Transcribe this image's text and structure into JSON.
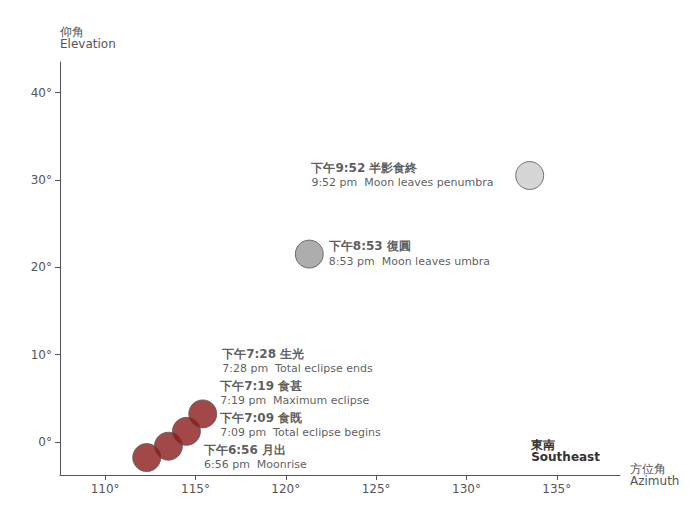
{
  "chart_data": {
    "type": "scatter",
    "xlabel": "方位角\nAzimuth",
    "ylabel": "仰角\nElevation",
    "annotations": [
      "東南\nSoutheast"
    ],
    "x": [
      112.3,
      113.5,
      114.5,
      115.4,
      121.3,
      133.5
    ],
    "values": [
      -1.8,
      -0.5,
      1.2,
      3.2,
      21.5,
      30.5
    ],
    "point_labels": [
      [
        "下午6:56 月出",
        "6:56 pm  Moonrise"
      ],
      [
        "下午7:09 食既",
        "7:09 pm  Total eclipse begins"
      ],
      [
        "下午7:19 食甚",
        "7:19 pm  Maximum eclipse"
      ],
      [
        "下午7:28 生光",
        "7:28 pm  Total eclipse ends"
      ],
      [
        "下午8:53 復圓",
        "8:53 pm  Moon leaves umbra"
      ],
      [
        "下午9:52 半影食終",
        "9:52 pm  Moon leaves penumbra"
      ]
    ],
    "colors": [
      "#8b1a1a",
      "#8b1a1a",
      "#8b1a1a",
      "#8b1a1a",
      "#999999",
      "#cccccc"
    ],
    "xlim": [
      107.5,
      138.5
    ],
    "ylim": [
      -3.8,
      43.5
    ],
    "xticks": [
      {
        "value": 110,
        "label": "110°"
      },
      {
        "value": 115,
        "label": "115°"
      },
      {
        "value": 120,
        "label": "120°"
      },
      {
        "value": 125,
        "label": "125°"
      },
      {
        "value": 130,
        "label": "130°"
      },
      {
        "value": 135,
        "label": "135°"
      }
    ],
    "yticks": [
      {
        "value": 0,
        "label": "0°"
      },
      {
        "value": 10,
        "label": "10°"
      },
      {
        "value": 20,
        "label": "20°"
      },
      {
        "value": 30,
        "label": "30°"
      },
      {
        "value": 40,
        "label": "40°"
      }
    ],
    "grid": false
  }
}
